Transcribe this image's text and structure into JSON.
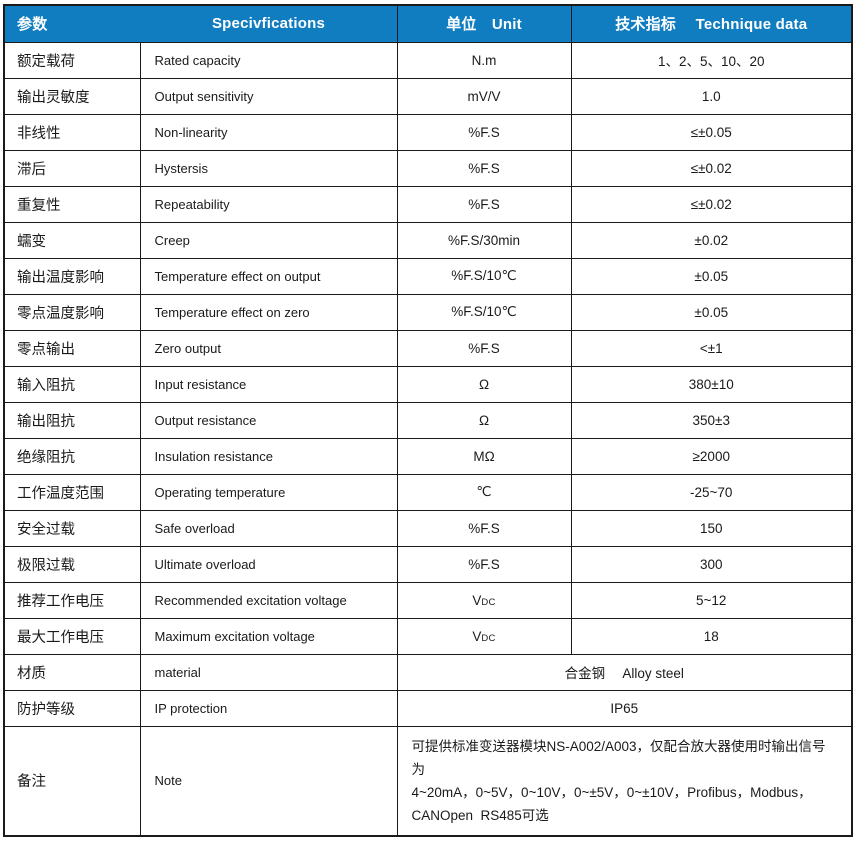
{
  "colors": {
    "header_bg": "#117DC1",
    "header_text": "#FFFFFF",
    "border": "#1A1A1A",
    "body_text": "#1A1A1A"
  },
  "table": {
    "header": {
      "col1": "参数",
      "col2": "Specivfications",
      "col3": "单位　Unit",
      "col4": "技术指标　  Technique data"
    },
    "rows": [
      {
        "zh": "额定载荷",
        "en": "Rated capacity",
        "unit": "N.m",
        "value": "1、2、5、10、20"
      },
      {
        "zh": "输出灵敏度",
        "en": "Output sensitivity",
        "unit": "mV/V",
        "value": "1.0"
      },
      {
        "zh": "非线性",
        "en": "Non-linearity",
        "unit": "%F.S",
        "value": "≤±0.05"
      },
      {
        "zh": "滞后",
        "en": "Hystersis",
        "unit": "%F.S",
        "value": "≤±0.02"
      },
      {
        "zh": "重复性",
        "en": "Repeatability",
        "unit": "%F.S",
        "value": "≤±0.02"
      },
      {
        "zh": "蠕变",
        "en": "Creep",
        "unit": "%F.S/30min",
        "value": "±0.02"
      },
      {
        "zh": "输出温度影响",
        "en": "Temperature effect on output",
        "unit": "%F.S/10℃",
        "value": "±0.05"
      },
      {
        "zh": "零点温度影响",
        "en": "Temperature effect on zero",
        "unit": "%F.S/10℃",
        "value": "±0.05"
      },
      {
        "zh": "零点输出",
        "en": "Zero output",
        "unit": "%F.S",
        "value": "<±1"
      },
      {
        "zh": "输入阻抗",
        "en": "Input resistance",
        "unit": "Ω",
        "value": "380±10"
      },
      {
        "zh": "输出阻抗",
        "en": "Output resistance",
        "unit": "Ω",
        "value": "350±3"
      },
      {
        "zh": "绝缘阻抗",
        "en": "Insulation resistance",
        "unit": "MΩ",
        "value": "≥2000"
      },
      {
        "zh": "工作温度范围",
        "en": "Operating temperature",
        "unit": "℃",
        "value": "-25~70"
      },
      {
        "zh": "安全过载",
        "en": "Safe overload",
        "unit": "%F.S",
        "value": "150"
      },
      {
        "zh": "极限过载",
        "en": "Ultimate overload",
        "unit": "%F.S",
        "value": "300"
      },
      {
        "zh": "推荐工作电压",
        "en": "Recommended excitation voltage",
        "unit": "V",
        "unit_sub": "DC",
        "value": "5~12"
      },
      {
        "zh": "最大工作电压",
        "en": "Maximum excitation voltage",
        "unit": "V",
        "unit_sub": "DC",
        "value": "18"
      },
      {
        "zh": "材质",
        "en": "material",
        "merged_value": "合金钢　 Alloy steel"
      },
      {
        "zh": "防护等级",
        "en": "IP protection",
        "merged_value": "IP65"
      },
      {
        "zh": "备注",
        "en": "Note",
        "merged_value": "可提供标准变送器模块NS-A002/A003，仅配合放大器使用时输出信号为\n4~20mA，0~5V，0~10V，0~±5V，0~±10V，Profibus，Modbus，\nCANOpen  RS485可选"
      }
    ]
  }
}
